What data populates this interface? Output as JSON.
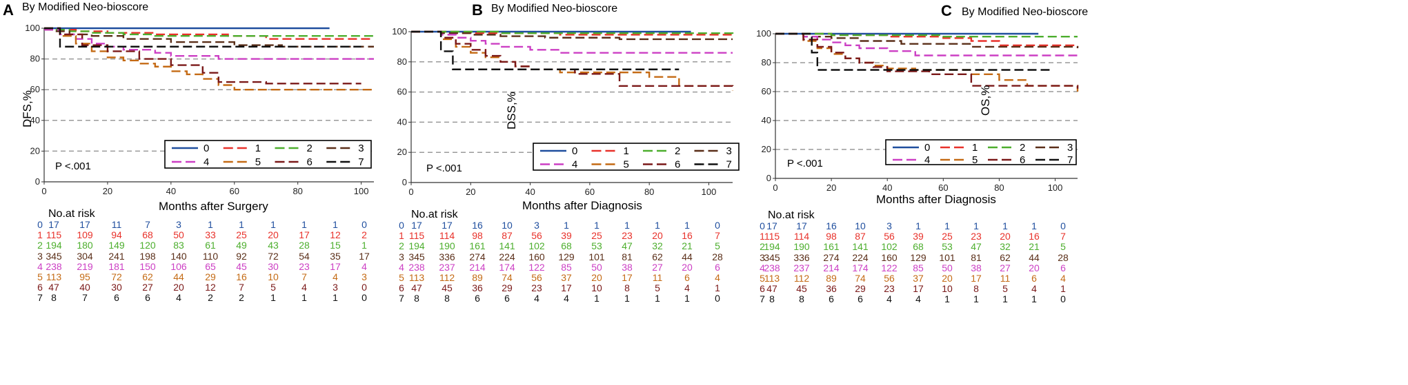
{
  "colors": {
    "0": "#1f4e9e",
    "1": "#e8312a",
    "2": "#4cae2d",
    "3": "#5a2e18",
    "4": "#cc3fc4",
    "5": "#c46a14",
    "6": "#7a1818",
    "7": "#111111",
    "grid": "#999999"
  },
  "panels": [
    {
      "label": "A",
      "title": "By Modified Neo-bioscore",
      "pvalue": "P <.001",
      "risk_title": "No.at risk",
      "risk_rows": [
        {
          "group": "0",
          "values": [
            "17",
            "17",
            "11",
            "7",
            "3",
            "1",
            "1",
            "1",
            "1",
            "1",
            "0"
          ]
        },
        {
          "group": "1",
          "values": [
            "115",
            "109",
            "94",
            "68",
            "50",
            "33",
            "25",
            "20",
            "17",
            "12",
            "2"
          ]
        },
        {
          "group": "2",
          "values": [
            "194",
            "180",
            "149",
            "120",
            "83",
            "61",
            "49",
            "43",
            "28",
            "15",
            "1"
          ]
        },
        {
          "group": "3",
          "values": [
            "345",
            "304",
            "241",
            "198",
            "140",
            "110",
            "92",
            "72",
            "54",
            "35",
            "17"
          ]
        },
        {
          "group": "4",
          "values": [
            "238",
            "219",
            "181",
            "150",
            "106",
            "65",
            "45",
            "30",
            "23",
            "17",
            "4"
          ]
        },
        {
          "group": "5",
          "values": [
            "113",
            "95",
            "72",
            "62",
            "44",
            "29",
            "16",
            "10",
            "7",
            "4",
            "3"
          ]
        },
        {
          "group": "6",
          "values": [
            "47",
            "40",
            "30",
            "27",
            "20",
            "12",
            "7",
            "5",
            "4",
            "3",
            "0"
          ]
        },
        {
          "group": "7",
          "values": [
            "8",
            "7",
            "6",
            "6",
            "4",
            "2",
            "2",
            "1",
            "1",
            "1",
            "0"
          ]
        }
      ],
      "chart_data": {
        "type": "line",
        "title": "By Modified Neo-bioscore",
        "xlabel": "Months after Surgery",
        "ylabel": "DFS,%",
        "xlim": [
          0,
          104
        ],
        "ylim": [
          0,
          100
        ],
        "xticks": [
          "0",
          "20",
          "40",
          "60",
          "80",
          "100"
        ],
        "yticks": [
          "0",
          "20",
          "40",
          "60",
          "80",
          "100"
        ],
        "legend": [
          "0",
          "1",
          "2",
          "3",
          "4",
          "5",
          "6",
          "7"
        ],
        "series": [
          {
            "name": "0",
            "x": [
              0,
              90
            ],
            "y": [
              100,
              100
            ]
          },
          {
            "name": "1",
            "x": [
              0,
              4,
              10,
              20,
              35,
              58,
              70,
              104
            ],
            "y": [
              100,
              99,
              98,
              97,
              96,
              95,
              93,
              93
            ]
          },
          {
            "name": "2",
            "x": [
              0,
              3,
              8,
              15,
              25,
              35,
              50,
              70,
              104
            ],
            "y": [
              100,
              99,
              98,
              97,
              96,
              95,
              95,
              95,
              95
            ]
          },
          {
            "name": "3",
            "x": [
              0,
              3,
              8,
              15,
              25,
              40,
              60,
              75,
              104
            ],
            "y": [
              99,
              98,
              96,
              95,
              93,
              91,
              89,
              88,
              88
            ]
          },
          {
            "name": "4",
            "x": [
              0,
              5,
              10,
              15,
              20,
              25,
              35,
              40,
              55,
              104
            ],
            "y": [
              99,
              96,
              93,
              90,
              88,
              86,
              84,
              82,
              80,
              80
            ]
          },
          {
            "name": "5",
            "x": [
              0,
              5,
              10,
              15,
              20,
              25,
              30,
              35,
              40,
              45,
              50,
              55,
              60,
              104
            ],
            "y": [
              100,
              95,
              90,
              85,
              81,
              79,
              77,
              75,
              72,
              70,
              67,
              63,
              60,
              60
            ]
          },
          {
            "name": "6",
            "x": [
              0,
              5,
              12,
              20,
              30,
              40,
              50,
              55,
              70,
              100
            ],
            "y": [
              100,
              96,
              89,
              85,
              80,
              76,
              71,
              65,
              64,
              64
            ]
          },
          {
            "name": "7",
            "x": [
              0,
              4,
              5,
              20,
              100
            ],
            "y": [
              100,
              100,
              88,
              88,
              88
            ]
          }
        ]
      }
    },
    {
      "label": "B",
      "title": "By Modified Neo-bioscore",
      "pvalue": "P <.001",
      "risk_title": "No.at risk",
      "risk_rows": [
        {
          "group": "0",
          "values": [
            "17",
            "17",
            "16",
            "10",
            "3",
            "1",
            "1",
            "1",
            "1",
            "1",
            "0"
          ]
        },
        {
          "group": "1",
          "values": [
            "115",
            "114",
            "98",
            "87",
            "56",
            "39",
            "25",
            "23",
            "20",
            "16",
            "7"
          ]
        },
        {
          "group": "2",
          "values": [
            "194",
            "190",
            "161",
            "141",
            "102",
            "68",
            "53",
            "47",
            "32",
            "21",
            "5"
          ]
        },
        {
          "group": "3",
          "values": [
            "345",
            "336",
            "274",
            "224",
            "160",
            "129",
            "101",
            "81",
            "62",
            "44",
            "28"
          ]
        },
        {
          "group": "4",
          "values": [
            "238",
            "237",
            "214",
            "174",
            "122",
            "85",
            "50",
            "38",
            "27",
            "20",
            "6"
          ]
        },
        {
          "group": "5",
          "values": [
            "113",
            "112",
            "89",
            "74",
            "56",
            "37",
            "20",
            "17",
            "11",
            "6",
            "4"
          ]
        },
        {
          "group": "6",
          "values": [
            "47",
            "45",
            "36",
            "29",
            "23",
            "17",
            "10",
            "8",
            "5",
            "4",
            "1"
          ]
        },
        {
          "group": "7",
          "values": [
            "8",
            "8",
            "6",
            "6",
            "4",
            "4",
            "1",
            "1",
            "1",
            "1",
            "0"
          ]
        }
      ],
      "chart_data": {
        "type": "line",
        "title": "By Modified Neo-bioscore",
        "xlabel": "Months after Diagnosis",
        "ylabel": "DSS,%",
        "xlim": [
          0,
          108
        ],
        "ylim": [
          0,
          100
        ],
        "xticks": [
          "0",
          "20",
          "40",
          "60",
          "80",
          "100"
        ],
        "yticks": [
          "0",
          "20",
          "40",
          "60",
          "80",
          "100"
        ],
        "legend": [
          "0",
          "1",
          "2",
          "3",
          "4",
          "5",
          "6",
          "7"
        ],
        "series": [
          {
            "name": "0",
            "x": [
              0,
              94
            ],
            "y": [
              100,
              100
            ]
          },
          {
            "name": "1",
            "x": [
              0,
              15,
              30,
              50,
              80,
              108
            ],
            "y": [
              100,
              99,
              99,
              98,
              98,
              98
            ]
          },
          {
            "name": "2",
            "x": [
              0,
              15,
              30,
              50,
              80,
              108
            ],
            "y": [
              100,
              100,
              99,
              99,
              99,
              98
            ]
          },
          {
            "name": "3",
            "x": [
              0,
              10,
              20,
              30,
              45,
              70,
              108
            ],
            "y": [
              100,
              99,
              98,
              97,
              96,
              95,
              95
            ]
          },
          {
            "name": "4",
            "x": [
              0,
              10,
              15,
              20,
              25,
              30,
              40,
              50,
              108
            ],
            "y": [
              100,
              98,
              96,
              94,
              92,
              90,
              88,
              86,
              86
            ]
          },
          {
            "name": "5",
            "x": [
              0,
              10,
              15,
              20,
              25,
              30,
              35,
              40,
              50,
              80,
              90,
              108
            ],
            "y": [
              100,
              95,
              90,
              86,
              83,
              80,
              77,
              75,
              73,
              70,
              64,
              61
            ]
          },
          {
            "name": "6",
            "x": [
              0,
              10,
              15,
              20,
              25,
              30,
              35,
              40,
              55,
              70,
              108
            ],
            "y": [
              100,
              96,
              92,
              88,
              84,
              80,
              77,
              75,
              72,
              64,
              62
            ]
          },
          {
            "name": "7",
            "x": [
              0,
              9,
              10,
              13,
              14,
              90
            ],
            "y": [
              100,
              100,
              87,
              87,
              75,
              75
            ]
          }
        ]
      }
    },
    {
      "label": "C",
      "title": "By Modified Neo-bioscore",
      "pvalue": "P <.001",
      "risk_title": "No.at risk",
      "risk_rows": [
        {
          "group": "0",
          "values": [
            "17",
            "17",
            "16",
            "10",
            "3",
            "1",
            "1",
            "1",
            "1",
            "1",
            "0"
          ]
        },
        {
          "group": "1",
          "values": [
            "115",
            "114",
            "98",
            "87",
            "56",
            "39",
            "25",
            "23",
            "20",
            "16",
            "7"
          ]
        },
        {
          "group": "2",
          "values": [
            "194",
            "190",
            "161",
            "141",
            "102",
            "68",
            "53",
            "47",
            "32",
            "21",
            "5"
          ]
        },
        {
          "group": "3",
          "values": [
            "345",
            "336",
            "274",
            "224",
            "160",
            "129",
            "101",
            "81",
            "62",
            "44",
            "28"
          ]
        },
        {
          "group": "4",
          "values": [
            "238",
            "237",
            "214",
            "174",
            "122",
            "85",
            "50",
            "38",
            "27",
            "20",
            "6"
          ]
        },
        {
          "group": "5",
          "values": [
            "113",
            "112",
            "89",
            "74",
            "56",
            "37",
            "20",
            "17",
            "11",
            "6",
            "4"
          ]
        },
        {
          "group": "6",
          "values": [
            "47",
            "45",
            "36",
            "29",
            "23",
            "17",
            "10",
            "8",
            "5",
            "4",
            "1"
          ]
        },
        {
          "group": "7",
          "values": [
            "8",
            "8",
            "6",
            "6",
            "4",
            "4",
            "1",
            "1",
            "1",
            "1",
            "0"
          ]
        }
      ],
      "chart_data": {
        "type": "line",
        "title": "By Modified Neo-bioscore",
        "xlabel": "Months after Diagnosis",
        "ylabel": "OS,%",
        "xlim": [
          0,
          108
        ],
        "ylim": [
          0,
          100
        ],
        "xticks": [
          "0",
          "20",
          "40",
          "60",
          "80",
          "100"
        ],
        "yticks": [
          "0",
          "20",
          "40",
          "60",
          "80",
          "100"
        ],
        "legend": [
          "0",
          "1",
          "2",
          "3",
          "4",
          "5",
          "6",
          "7"
        ],
        "series": [
          {
            "name": "0",
            "x": [
              0,
              94
            ],
            "y": [
              100,
              100
            ]
          },
          {
            "name": "1",
            "x": [
              0,
              20,
              40,
              60,
              70,
              80,
              108
            ],
            "y": [
              100,
              99,
              98,
              97,
              95,
              92,
              91
            ]
          },
          {
            "name": "2",
            "x": [
              0,
              20,
              40,
              60,
              80,
              108
            ],
            "y": [
              100,
              99,
              99,
              98,
              98,
              98
            ]
          },
          {
            "name": "3",
            "x": [
              0,
              10,
              20,
              30,
              45,
              70,
              108
            ],
            "y": [
              100,
              98,
              97,
              95,
              93,
              91,
              90
            ]
          },
          {
            "name": "4",
            "x": [
              0,
              10,
              15,
              20,
              25,
              30,
              40,
              50,
              108
            ],
            "y": [
              100,
              98,
              96,
              94,
              92,
              90,
              88,
              85,
              85
            ]
          },
          {
            "name": "5",
            "x": [
              0,
              10,
              15,
              20,
              25,
              30,
              35,
              40,
              50,
              70,
              80,
              90,
              108
            ],
            "y": [
              100,
              95,
              90,
              86,
              83,
              80,
              78,
              76,
              75,
              72,
              68,
              64,
              60
            ]
          },
          {
            "name": "6",
            "x": [
              0,
              10,
              15,
              20,
              25,
              30,
              35,
              40,
              55,
              70,
              108
            ],
            "y": [
              100,
              96,
              91,
              87,
              83,
              80,
              77,
              74,
              72,
              64,
              62
            ]
          },
          {
            "name": "7",
            "x": [
              0,
              12,
              13,
              14,
              15,
              98
            ],
            "y": [
              100,
              100,
              87,
              87,
              75,
              75
            ]
          }
        ]
      }
    }
  ]
}
